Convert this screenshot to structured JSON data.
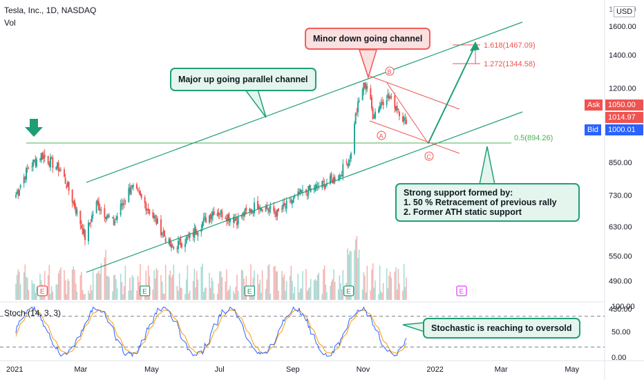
{
  "header": {
    "symbol": "Tesla, Inc., 1D, NASDAQ",
    "volume_label": "Vol",
    "currency": "USD"
  },
  "stoch_label": "Stoch (14, 3, 3)",
  "annotations": {
    "major_channel": "Major up going parallel channel",
    "minor_channel": "Minor down going channel",
    "support": [
      "Strong support formed by:",
      "1. 50 % Retracement of previous rally",
      "2. Former ATH static support"
    ],
    "stochastic": "Stochastic is reaching to oversold"
  },
  "quote": {
    "ask_label": "Ask",
    "ask_price": "1050.00",
    "last_price": "1014.97",
    "bid_label": "Bid",
    "bid_price": "1000.01"
  },
  "colors": {
    "up": "#26a69a",
    "down": "#ef5350",
    "channel": "#1e9e76",
    "fib": "#4caf50",
    "k_line": "#2962ff",
    "d_line": "#ff9800",
    "bid": "#2962ff",
    "ask": "#ef5350",
    "earnings_past": "#ef5350",
    "earnings_green": "#1e9e76",
    "earnings_future": "#e040fb"
  },
  "chart_data": {
    "type": "candlestick",
    "title": "Tesla, Inc., 1D, NASDAQ",
    "y_scale": "log",
    "ylim": [
      400,
      1800
    ],
    "price_axis_labels": [
      "1800.00",
      "1600.00",
      "1400.00",
      "1200.00",
      "1050.00",
      "1014.97",
      "1000.01",
      "850.00",
      "730.00",
      "630.00",
      "550.00",
      "490.00",
      "430.00"
    ],
    "time_axis_labels": [
      "2021",
      "Mar",
      "May",
      "Jul",
      "Sep",
      "Nov",
      "2022",
      "Mar",
      "May"
    ],
    "fibonacci": [
      {
        "ratio_label": "1.618(1467.09)",
        "price": 1467.09
      },
      {
        "ratio_label": "1.272(1344.58)",
        "price": 1344.58
      },
      {
        "ratio_label": "0.5(894.26)",
        "price": 894.26
      }
    ],
    "wave_labels": [
      "A",
      "B",
      "C"
    ],
    "earnings_markers": [
      "E",
      "E",
      "E",
      "E",
      "E"
    ],
    "price_series_approx": [
      {
        "date": "2021-01-04",
        "close": 730
      },
      {
        "date": "2021-01-15",
        "close": 830
      },
      {
        "date": "2021-01-26",
        "close": 880
      },
      {
        "date": "2021-02-12",
        "close": 820
      },
      {
        "date": "2021-03-05",
        "close": 600
      },
      {
        "date": "2021-03-15",
        "close": 700
      },
      {
        "date": "2021-03-30",
        "close": 640
      },
      {
        "date": "2021-04-14",
        "close": 760
      },
      {
        "date": "2021-04-28",
        "close": 690
      },
      {
        "date": "2021-05-19",
        "close": 570
      },
      {
        "date": "2021-06-04",
        "close": 600
      },
      {
        "date": "2021-06-25",
        "close": 680
      },
      {
        "date": "2021-07-15",
        "close": 650
      },
      {
        "date": "2021-08-02",
        "close": 700
      },
      {
        "date": "2021-08-19",
        "close": 670
      },
      {
        "date": "2021-09-07",
        "close": 730
      },
      {
        "date": "2021-09-30",
        "close": 770
      },
      {
        "date": "2021-10-12",
        "close": 800
      },
      {
        "date": "2021-10-22",
        "close": 880
      },
      {
        "date": "2021-10-25",
        "close": 1030
      },
      {
        "date": "2021-11-01",
        "close": 1200
      },
      {
        "date": "2021-11-04",
        "close": 1230
      },
      {
        "date": "2021-11-10",
        "close": 1060
      },
      {
        "date": "2021-11-22",
        "close": 1160
      },
      {
        "date": "2021-12-01",
        "close": 1100
      },
      {
        "date": "2021-12-09",
        "close": 1014.97
      }
    ],
    "stochastic": {
      "name": "Stoch (14, 3, 3)",
      "axis_labels": [
        "100.00",
        "50.00",
        "0.00"
      ],
      "levels": [
        80,
        20
      ]
    }
  }
}
